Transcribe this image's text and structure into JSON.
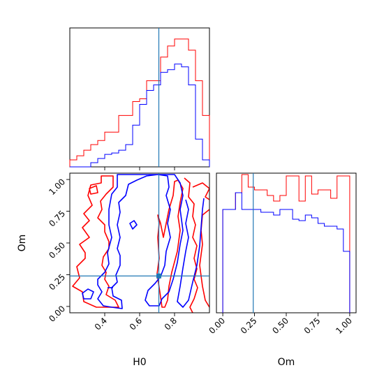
{
  "chart_data": {
    "type": "corner",
    "parameters": [
      "H0",
      "Om"
    ],
    "truths": {
      "H0": 0.71,
      "Om": 0.24
    },
    "colors": {
      "series_a": "#ff0000",
      "series_b": "#0000ff",
      "truth": "#1f77b4"
    },
    "panels": [
      {
        "id": "hist-H0",
        "type": "histogram",
        "x_range": [
          0.2,
          1.0
        ],
        "bins": [
          0.2,
          0.24,
          0.28,
          0.32,
          0.36,
          0.4,
          0.44,
          0.48,
          0.52,
          0.56,
          0.6,
          0.64,
          0.68,
          0.72,
          0.76,
          0.8,
          0.84,
          0.88,
          0.92,
          0.96,
          1.0
        ],
        "series": [
          {
            "color": "#ff0000",
            "values": [
              0.05,
              0.08,
              0.12,
              0.16,
              0.19,
              0.25,
              0.25,
              0.37,
              0.37,
              0.47,
              0.49,
              0.62,
              0.62,
              0.79,
              0.87,
              0.92,
              0.92,
              0.84,
              0.62,
              0.37
            ]
          },
          {
            "color": "#0000ff",
            "values": [
              0.0,
              0.0,
              0.0,
              0.03,
              0.06,
              0.09,
              0.1,
              0.12,
              0.16,
              0.3,
              0.45,
              0.55,
              0.59,
              0.68,
              0.7,
              0.74,
              0.72,
              0.59,
              0.2,
              0.05
            ]
          }
        ]
      },
      {
        "id": "hist-Om",
        "type": "histogram",
        "x_range": [
          -0.05,
          1.05
        ],
        "x_ticks": [
          "0.00",
          "0.25",
          "0.50",
          "0.75",
          "1.00"
        ],
        "x_label": "Om",
        "bins": [
          0.0,
          0.05,
          0.1,
          0.15,
          0.2,
          0.25,
          0.3,
          0.35,
          0.4,
          0.45,
          0.5,
          0.55,
          0.6,
          0.65,
          0.7,
          0.75,
          0.8,
          0.85,
          0.9,
          0.95,
          1.0
        ],
        "series": [
          {
            "color": "#ff0000",
            "values": [
              0.74,
              0.74,
              0.86,
              0.99,
              0.9,
              0.88,
              0.88,
              0.84,
              0.8,
              0.84,
              0.98,
              0.98,
              0.8,
              0.98,
              0.85,
              0.88,
              0.88,
              0.82,
              0.98,
              0.98
            ]
          },
          {
            "color": "#0000ff",
            "values": [
              0.74,
              0.74,
              0.86,
              0.74,
              0.74,
              0.74,
              0.72,
              0.72,
              0.7,
              0.74,
              0.74,
              0.67,
              0.66,
              0.7,
              0.68,
              0.64,
              0.62,
              0.62,
              0.6,
              0.44
            ]
          }
        ]
      },
      {
        "id": "joint-H0-Om",
        "type": "contour",
        "x_range": [
          0.2,
          1.0
        ],
        "y_range": [
          -0.05,
          1.05
        ],
        "x_ticks": [
          "0.4",
          "0.6",
          "0.8"
        ],
        "y_ticks": [
          "0.00",
          "0.25",
          "0.50",
          "0.75",
          "1.00"
        ],
        "x_label": "H0",
        "y_label": "Om",
        "truth_marker": [
          0.71,
          0.24
        ]
      }
    ]
  }
}
